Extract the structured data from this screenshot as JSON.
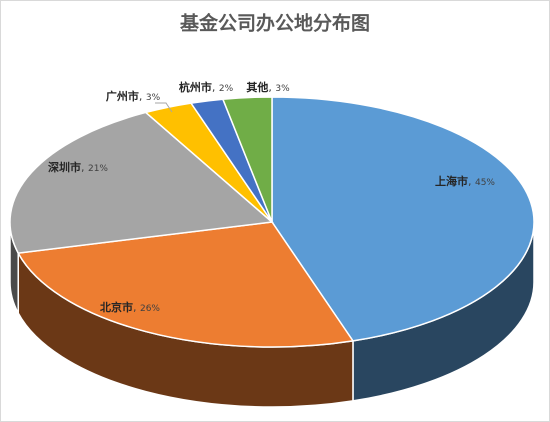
{
  "chart_data": {
    "type": "pie",
    "title": "基金公司办公地分布图",
    "categories": [
      "上海市",
      "北京市",
      "深圳市",
      "广州市",
      "杭州市",
      "其他"
    ],
    "values": [
      45,
      26,
      21,
      3,
      2,
      3
    ],
    "value_labels": [
      "45%",
      "26%",
      "21%",
      "3%",
      "2%",
      "3%"
    ],
    "label_separator": ", ",
    "colors": [
      "#5b9bd5",
      "#ed7d31",
      "#a5a5a5",
      "#ffc000",
      "#4472c4",
      "#70ad47"
    ]
  }
}
